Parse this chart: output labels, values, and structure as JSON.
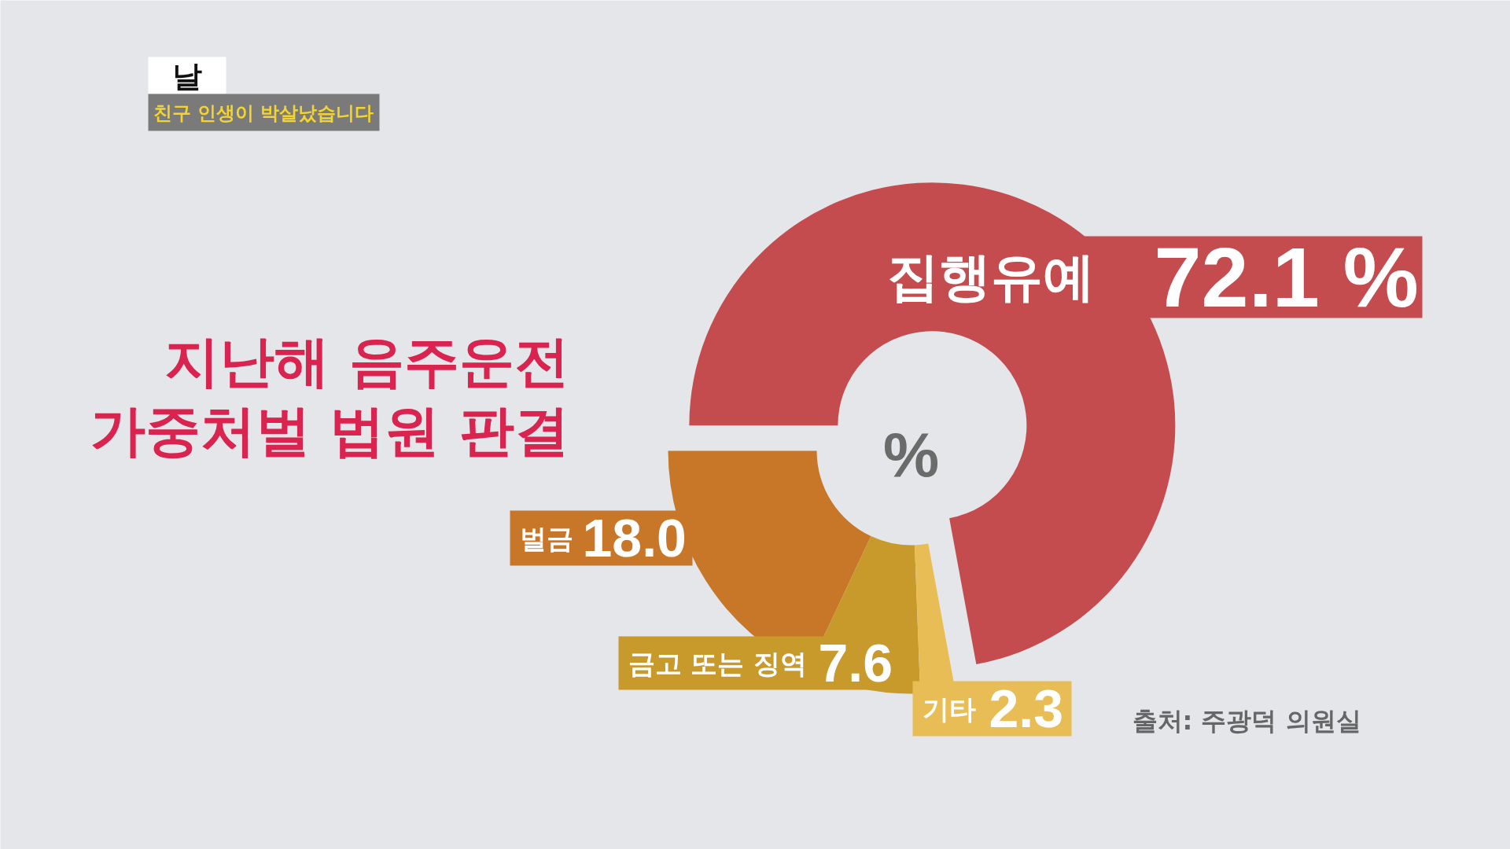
{
  "chart_data": {
    "type": "donut",
    "title": "지난해 음주운전\n가중처벌 법원 판결",
    "categories": [
      "집행유예",
      "벌금",
      "금고 또는 징역",
      "기타"
    ],
    "values": [
      72.1,
      18.0,
      7.6,
      2.3
    ],
    "colors": [
      "#c44c4f",
      "#c87628",
      "#c79a2b",
      "#e8bd55"
    ],
    "value_labels": [
      "72.1 %",
      "18.0",
      "7.6",
      "2.3"
    ],
    "annotations": [
      "%",
      "날",
      "친구 인생이 박살났습니다",
      "출처: 주광덕 의원실"
    ]
  }
}
